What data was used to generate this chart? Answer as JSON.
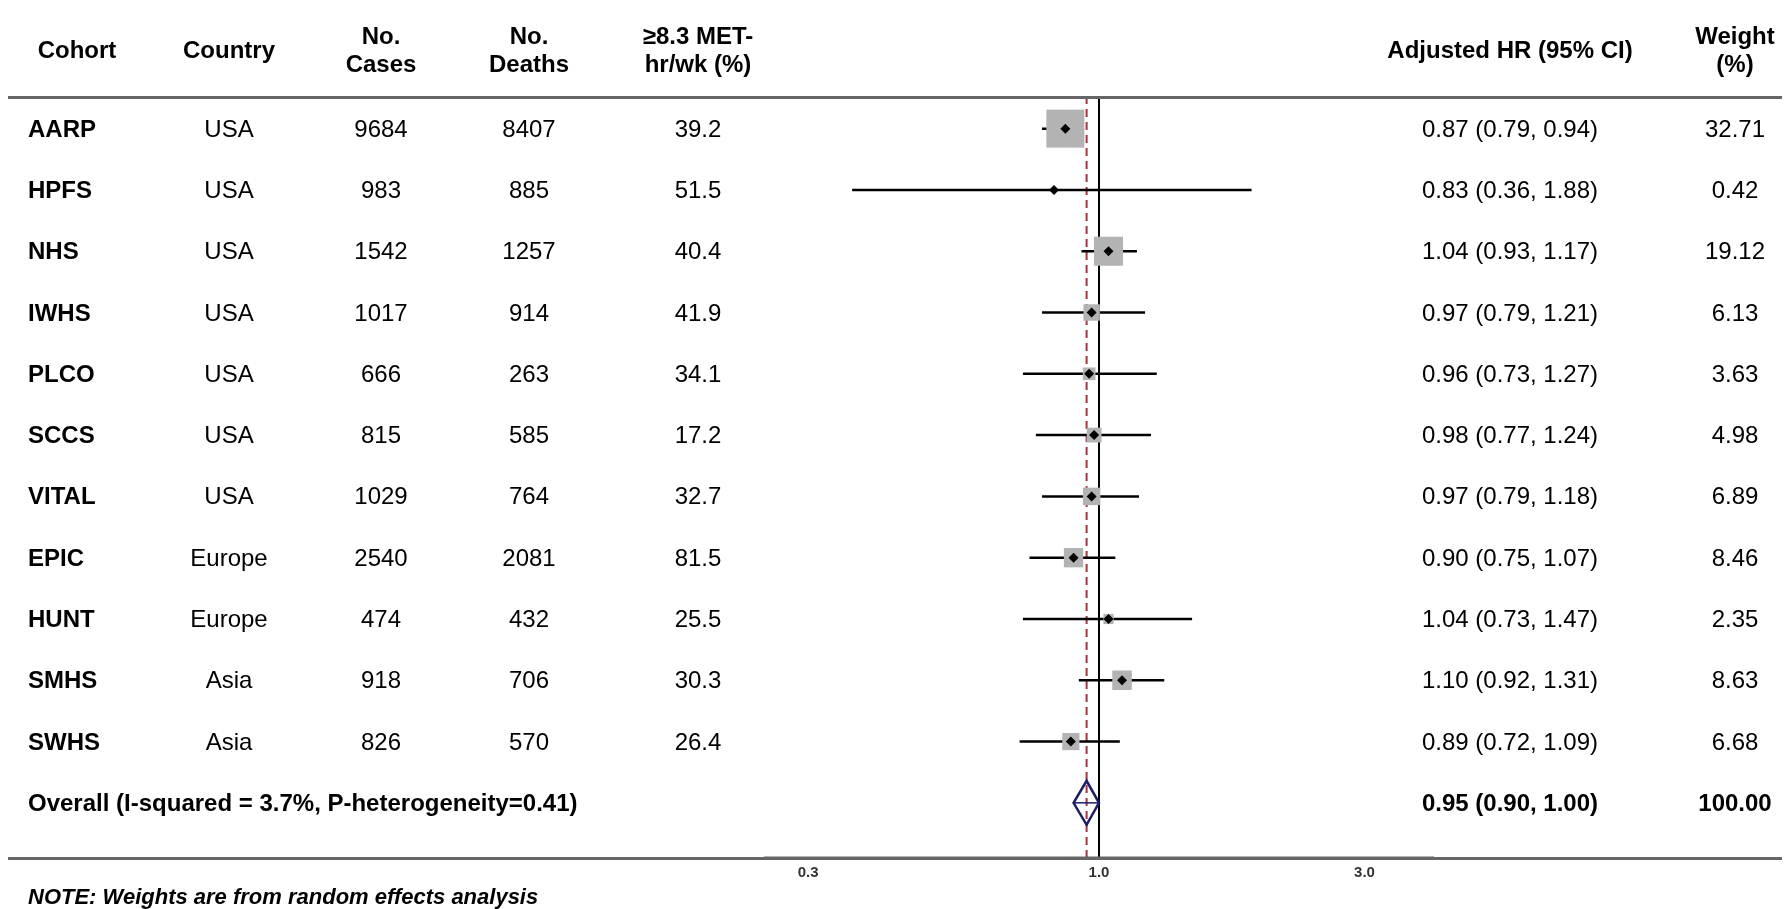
{
  "chart_data": {
    "type": "scatter",
    "log": "x",
    "xlim": [
      0.25,
      4
    ],
    "orientation": "horizontal",
    "xticks": [
      {
        "value": 0.3,
        "label": "0.3"
      },
      {
        "value": 1,
        "label": "1.0"
      },
      {
        "value": 3,
        "label": "3.0"
      }
    ],
    "categories": [
      "AARP",
      "HPFS",
      "NHS",
      "IWHS",
      "PLCO",
      "SCCS",
      "VITAL",
      "EPIC",
      "HUNT",
      "SMHS",
      "SWHS",
      "Overall (I-squared = 3.7%, P-heterogeneity=0.41)"
    ],
    "series": [
      {
        "type": "scatter",
        "marker": "square",
        "color": "#b3b3b3",
        "values": [
          0.87,
          0.83,
          1.04,
          0.97,
          0.96,
          0.98,
          0.97,
          0.9,
          1.04,
          1.1,
          0.89,
          null
        ],
        "errors": [
          [
            0.79,
            0.94
          ],
          [
            0.36,
            1.88
          ],
          [
            0.93,
            1.17
          ],
          [
            0.79,
            1.21
          ],
          [
            0.73,
            1.27
          ],
          [
            0.77,
            1.24
          ],
          [
            0.79,
            1.18
          ],
          [
            0.75,
            1.07
          ],
          [
            0.73,
            1.47
          ],
          [
            0.92,
            1.31
          ],
          [
            0.72,
            1.09
          ],
          null
        ],
        "sizes": [
          1,
          0.013,
          0.585,
          0.187,
          0.111,
          0.152,
          0.211,
          0.259,
          0.072,
          0.264,
          0.204,
          null
        ],
        "value_labels": [
          "0.87 (0.79, 0.94)",
          "0.83 (0.36, 1.88)",
          "1.04 (0.93, 1.17)",
          "0.97 (0.79, 1.21)",
          "0.96 (0.73, 1.27)",
          "0.98 (0.77, 1.24)",
          "0.97 (0.79, 1.18)",
          "0.90 (0.75, 1.07)",
          "1.04 (0.73, 1.47)",
          "1.10 (0.92, 1.31)",
          "0.89 (0.72, 1.09)",
          null
        ]
      },
      {
        "type": "scatter",
        "marker": "diamond",
        "color": "#1c1c6b",
        "values": [
          null,
          null,
          null,
          null,
          null,
          null,
          null,
          null,
          null,
          null,
          null,
          0.95
        ],
        "errors": [
          null,
          null,
          null,
          null,
          null,
          null,
          null,
          null,
          null,
          null,
          null,
          [
            0.9,
            1.0
          ]
        ]
      }
    ],
    "ref_lines": [
      {
        "axis": "x",
        "value": 1,
        "color": "#000000",
        "line_style": "solid"
      },
      {
        "axis": "x",
        "value": 0.95,
        "color": "#a8323e",
        "line_style": "dashed"
      }
    ],
    "annotations": [
      "Cohort",
      "Country",
      "No. Cases",
      "No. Deaths",
      "≥8.3 MET-hr/wk (%)",
      "Adjusted HR (95% CI)",
      "Weight (%)",
      "USA",
      "9684",
      "8407",
      "39.2",
      "32.71",
      "USA",
      "983",
      "885",
      "51.5",
      "0.42",
      "USA",
      "1542",
      "1257",
      "40.4",
      "19.12",
      "USA",
      "1017",
      "914",
      "41.9",
      "6.13",
      "USA",
      "666",
      "263",
      "34.1",
      "3.63",
      "USA",
      "815",
      "585",
      "17.2",
      "4.98",
      "USA",
      "1029",
      "764",
      "32.7",
      "6.89",
      "Europe",
      "2540",
      "2081",
      "81.5",
      "8.46",
      "Europe",
      "474",
      "432",
      "25.5",
      "2.35",
      "Asia",
      "918",
      "706",
      "30.3",
      "8.63",
      "Asia",
      "826",
      "570",
      "26.4",
      "6.68",
      "0.95 (0.90, 1.00)",
      "100.00",
      "NOTE: Weights are from random effects analysis"
    ]
  }
}
